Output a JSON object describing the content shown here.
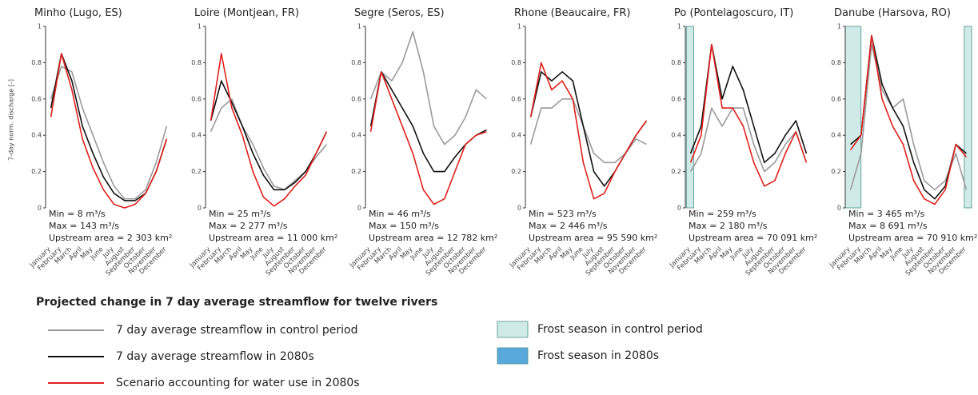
{
  "figure": {
    "title": "Projected change in 7 day average streamflow for twelve rivers",
    "y_label": "7-day norm. discharge [-]",
    "frost_legend": [
      {
        "name": "Frost season in control period",
        "color": "#cfeae7"
      },
      {
        "name": "Frost season in 2080s",
        "color": "#5aa9dd"
      }
    ]
  },
  "chart_data": [
    {
      "type": "line",
      "title": "Minho (Lugo, ES)",
      "categories": [
        "January",
        "February",
        "March",
        "April",
        "May",
        "June",
        "July",
        "August",
        "September",
        "October",
        "November",
        "December"
      ],
      "ylim": [
        0,
        1
      ],
      "yticks": [
        0,
        0.2,
        0.4,
        0.6,
        0.8,
        1
      ],
      "series": [
        {
          "name": "7 day average streamflow in control period",
          "color": "#9a9a9a",
          "values": [
            0.6,
            0.78,
            0.75,
            0.55,
            0.4,
            0.25,
            0.12,
            0.05,
            0.05,
            0.1,
            0.25,
            0.45
          ]
        },
        {
          "name": "7 day average streamflow in 2080s",
          "color": "#111111",
          "values": [
            0.55,
            0.85,
            0.7,
            0.45,
            0.3,
            0.17,
            0.08,
            0.04,
            0.04,
            0.08,
            0.2,
            0.38
          ]
        },
        {
          "name": "Scenario accounting for water use in 2080s",
          "color": "#e0201b",
          "values": [
            0.5,
            0.85,
            0.65,
            0.38,
            0.22,
            0.1,
            0.02,
            0.0,
            0.02,
            0.08,
            0.2,
            0.38
          ]
        }
      ],
      "annotations": [
        "Min = 8 m³/s",
        "Max = 143 m³/s",
        "Upstream area = 2 303 km²"
      ],
      "frost_control": []
    },
    {
      "type": "line",
      "title": "Loire (Montjean, FR)",
      "categories": [
        "January",
        "February",
        "March",
        "April",
        "May",
        "June",
        "July",
        "August",
        "September",
        "October",
        "November",
        "December"
      ],
      "ylim": [
        0,
        1
      ],
      "yticks": [
        0,
        0.2,
        0.4,
        0.6,
        0.8,
        1
      ],
      "series": [
        {
          "name": "7 day average streamflow in control period",
          "color": "#9a9a9a",
          "values": [
            0.42,
            0.55,
            0.6,
            0.45,
            0.35,
            0.22,
            0.12,
            0.1,
            0.15,
            0.2,
            0.28,
            0.35
          ]
        },
        {
          "name": "7 day average streamflow in 2080s",
          "color": "#111111",
          "values": [
            0.48,
            0.7,
            0.58,
            0.45,
            0.3,
            0.18,
            0.1,
            0.1,
            0.14,
            0.2,
            0.3,
            0.42
          ]
        },
        {
          "name": "Scenario accounting for water use in 2080s",
          "color": "#e0201b",
          "values": [
            0.48,
            0.85,
            0.55,
            0.4,
            0.2,
            0.06,
            0.01,
            0.05,
            0.12,
            0.18,
            0.3,
            0.42
          ]
        }
      ],
      "annotations": [
        "Min = 25 m³/s",
        "Max = 2 277 m³/s",
        "Upstream area = 11 000 km²"
      ],
      "frost_control": []
    },
    {
      "type": "line",
      "title": "Segre (Seros, ES)",
      "categories": [
        "January",
        "February",
        "March",
        "April",
        "May",
        "June",
        "July",
        "August",
        "September",
        "October",
        "November",
        "December"
      ],
      "ylim": [
        0,
        1
      ],
      "yticks": [
        0,
        0.2,
        0.4,
        0.6,
        0.8,
        1
      ],
      "series": [
        {
          "name": "7 day average streamflow in control period",
          "color": "#9a9a9a",
          "values": [
            0.6,
            0.75,
            0.7,
            0.8,
            0.97,
            0.75,
            0.45,
            0.35,
            0.4,
            0.5,
            0.65,
            0.6
          ]
        },
        {
          "name": "7 day average streamflow in 2080s",
          "color": "#111111",
          "values": [
            0.45,
            0.75,
            0.65,
            0.55,
            0.45,
            0.3,
            0.2,
            0.2,
            0.28,
            0.35,
            0.4,
            0.43
          ]
        },
        {
          "name": "Scenario accounting for water use in 2080s",
          "color": "#e0201b",
          "values": [
            0.42,
            0.75,
            0.6,
            0.45,
            0.3,
            0.1,
            0.02,
            0.05,
            0.2,
            0.35,
            0.4,
            0.42
          ]
        }
      ],
      "annotations": [
        "Min = 46 m³/s",
        "Max = 150 m³/s",
        "Upstream area = 12 782 km²"
      ],
      "frost_control": []
    },
    {
      "type": "line",
      "title": "Rhone (Beaucaire, FR)",
      "categories": [
        "January",
        "February",
        "March",
        "April",
        "May",
        "June",
        "July",
        "August",
        "September",
        "October",
        "November",
        "December"
      ],
      "ylim": [
        0,
        1
      ],
      "yticks": [
        0,
        0.2,
        0.4,
        0.6,
        0.8,
        1
      ],
      "series": [
        {
          "name": "7 day average streamflow in control period",
          "color": "#9a9a9a",
          "values": [
            0.35,
            0.55,
            0.55,
            0.6,
            0.6,
            0.45,
            0.3,
            0.25,
            0.25,
            0.3,
            0.38,
            0.35
          ]
        },
        {
          "name": "7 day average streamflow in 2080s",
          "color": "#111111",
          "values": [
            0.5,
            0.75,
            0.7,
            0.75,
            0.7,
            0.45,
            0.2,
            0.12,
            0.2,
            0.3,
            0.4,
            0.48
          ]
        },
        {
          "name": "Scenario accounting for water use in 2080s",
          "color": "#e0201b",
          "values": [
            0.5,
            0.8,
            0.65,
            0.7,
            0.6,
            0.25,
            0.05,
            0.08,
            0.2,
            0.3,
            0.4,
            0.48
          ]
        }
      ],
      "annotations": [
        "Min = 523 m³/s",
        "Max = 2 446 m³/s",
        "Upstream area = 95 590 km²"
      ],
      "frost_control": []
    },
    {
      "type": "line",
      "title": "Po (Pontelagoscuro, IT)",
      "categories": [
        "January",
        "February",
        "March",
        "April",
        "May",
        "June",
        "July",
        "August",
        "September",
        "October",
        "November",
        "December"
      ],
      "ylim": [
        0,
        1
      ],
      "yticks": [
        0,
        0.2,
        0.4,
        0.6,
        0.8,
        1
      ],
      "series": [
        {
          "name": "7 day average streamflow in control period",
          "color": "#9a9a9a",
          "values": [
            0.2,
            0.3,
            0.55,
            0.45,
            0.55,
            0.55,
            0.35,
            0.2,
            0.25,
            0.35,
            0.42,
            0.25
          ]
        },
        {
          "name": "7 day average streamflow in 2080s",
          "color": "#111111",
          "values": [
            0.3,
            0.45,
            0.9,
            0.6,
            0.78,
            0.65,
            0.45,
            0.25,
            0.3,
            0.4,
            0.48,
            0.3
          ]
        },
        {
          "name": "Scenario accounting for water use in 2080s",
          "color": "#e0201b",
          "values": [
            0.25,
            0.4,
            0.9,
            0.55,
            0.55,
            0.45,
            0.25,
            0.12,
            0.15,
            0.3,
            0.42,
            0.25
          ]
        }
      ],
      "annotations": [
        "Min = 259 m³/s",
        "Max = 2 180 m³/s",
        "Upstream area = 70 091 km²"
      ],
      "frost_control": [
        [
          0.1,
          0.8
        ]
      ]
    },
    {
      "type": "line",
      "title": "Danube (Harsova, RO)",
      "categories": [
        "January",
        "February",
        "March",
        "April",
        "May",
        "June",
        "July",
        "August",
        "September",
        "October",
        "November",
        "December"
      ],
      "ylim": [
        0,
        1
      ],
      "yticks": [
        0,
        0.2,
        0.4,
        0.6,
        0.8,
        1
      ],
      "series": [
        {
          "name": "7 day average streamflow in control period",
          "color": "#9a9a9a",
          "values": [
            0.1,
            0.3,
            0.9,
            0.65,
            0.55,
            0.6,
            0.35,
            0.15,
            0.1,
            0.15,
            0.3,
            0.1
          ]
        },
        {
          "name": "7 day average streamflow in 2080s",
          "color": "#111111",
          "values": [
            0.35,
            0.4,
            0.95,
            0.68,
            0.55,
            0.45,
            0.25,
            0.1,
            0.05,
            0.12,
            0.35,
            0.3
          ]
        },
        {
          "name": "Scenario accounting for water use in 2080s",
          "color": "#e0201b",
          "values": [
            0.32,
            0.4,
            0.95,
            0.6,
            0.45,
            0.35,
            0.15,
            0.05,
            0.02,
            0.1,
            0.35,
            0.28
          ]
        }
      ],
      "annotations": [
        "Min = 3 465 m³/s",
        "Max = 8 691 m³/s",
        "Upstream area = 70 910 km²"
      ],
      "frost_control": [
        [
          0,
          1.5
        ],
        [
          11.3,
          12
        ]
      ]
    }
  ]
}
